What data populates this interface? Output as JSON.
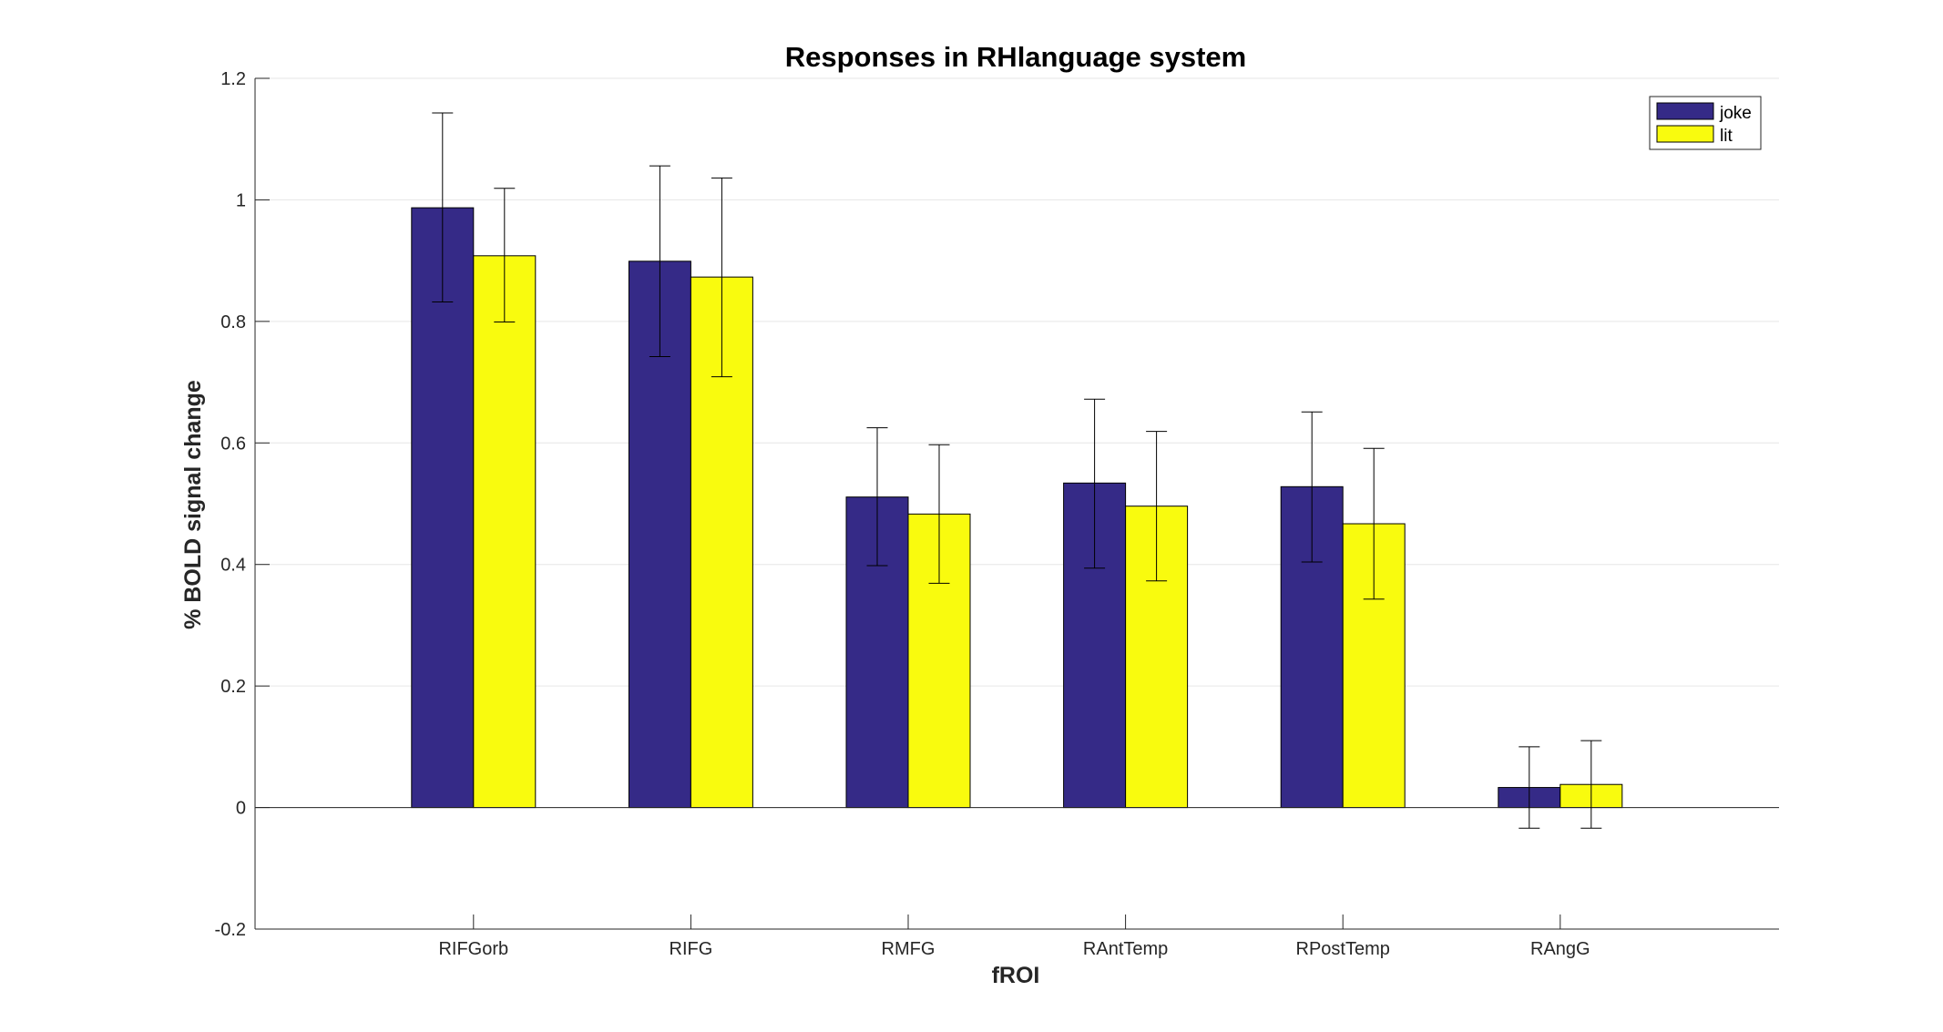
{
  "chart_data": {
    "type": "bar",
    "title": "Responses in RHlanguage system",
    "xlabel": "fROI",
    "ylabel": "% BOLD signal change",
    "categories": [
      "RIFGorb",
      "RIFG",
      "RMFG",
      "RAntTemp",
      "RPostTemp",
      "RAngG"
    ],
    "series": [
      {
        "name": "joke",
        "color": "#352a87",
        "values": [
          0.987,
          0.899,
          0.511,
          0.534,
          0.528,
          0.033
        ],
        "err_low": [
          0.832,
          0.742,
          0.398,
          0.394,
          0.404,
          -0.034
        ],
        "err_high": [
          1.143,
          1.056,
          0.625,
          0.672,
          0.651,
          0.1
        ]
      },
      {
        "name": "lit",
        "color": "#f9fb0e",
        "values": [
          0.908,
          0.873,
          0.483,
          0.496,
          0.467,
          0.038
        ],
        "err_low": [
          0.799,
          0.709,
          0.369,
          0.373,
          0.343,
          -0.034
        ],
        "err_high": [
          1.019,
          1.036,
          0.597,
          0.619,
          0.591,
          0.11
        ]
      }
    ],
    "ylim": [
      -0.2,
      1.2
    ],
    "yticks": [
      -0.2,
      0,
      0.2,
      0.4,
      0.6,
      0.8,
      1,
      1.2
    ],
    "ytick_labels": [
      "-0.2",
      "0",
      "0.2",
      "0.4",
      "0.6",
      "0.8",
      "1",
      "1.2"
    ],
    "grid": true,
    "legend_position": "top-right"
  }
}
